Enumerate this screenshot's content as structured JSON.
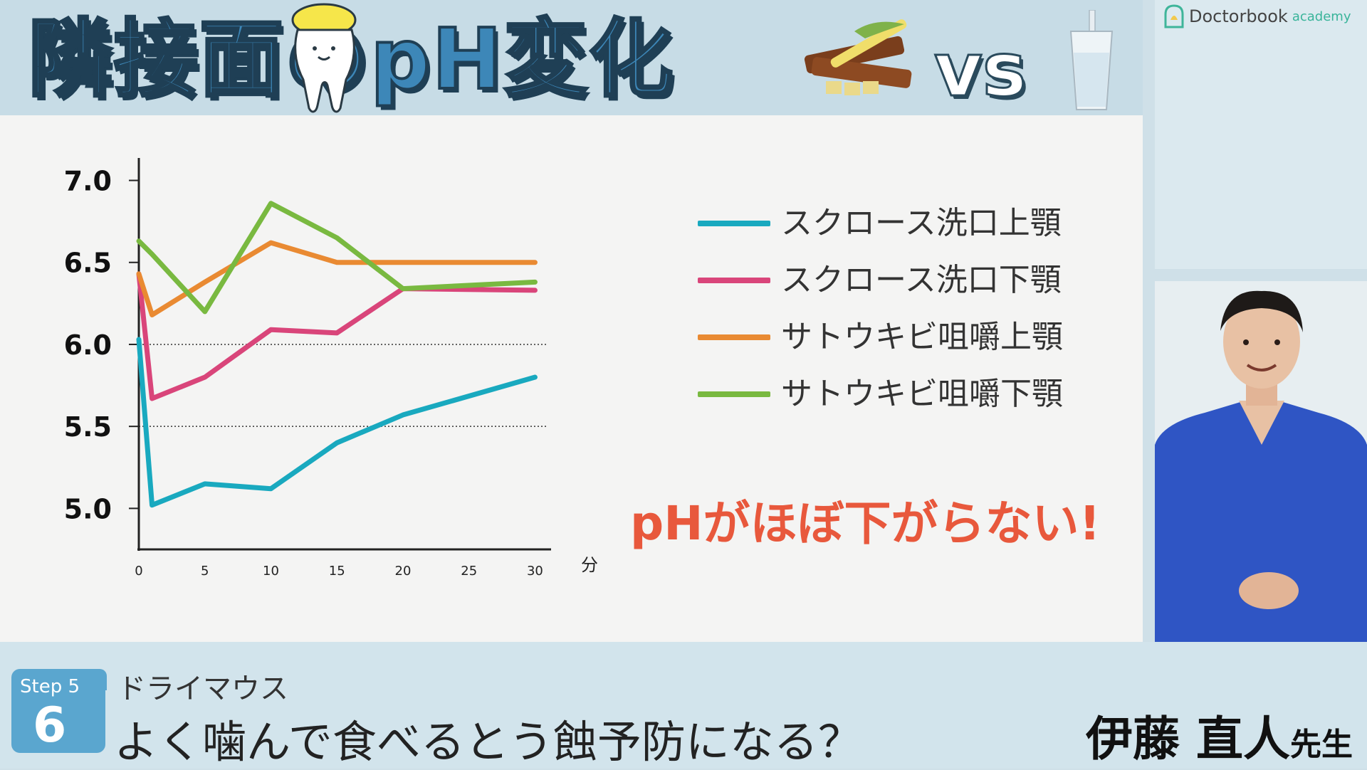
{
  "header": {
    "title": "隣接面のpH変化",
    "vs": "vs"
  },
  "chart_data": {
    "type": "line",
    "xlabel": "分",
    "ylabel": "",
    "x": [
      0,
      1,
      5,
      10,
      15,
      20,
      30
    ],
    "xticks": [
      0,
      5,
      10,
      15,
      20,
      25,
      30
    ],
    "yticks": [
      "5.0",
      "5.5",
      "6.0",
      "6.5",
      "7.0"
    ],
    "xlim": [
      0,
      31
    ],
    "ylim": [
      4.75,
      7.05
    ],
    "dotted_gridlines": [
      5.5,
      6.0
    ],
    "legend_position": "right",
    "series": [
      {
        "name": "スクロース洗口上顎",
        "color": "#19a9bf",
        "values": [
          6.03,
          5.02,
          5.15,
          5.12,
          5.4,
          5.57,
          5.8
        ]
      },
      {
        "name": "スクロース洗口下顎",
        "color": "#d9457a",
        "values": [
          6.43,
          5.67,
          5.8,
          6.09,
          6.07,
          6.34,
          6.33
        ]
      },
      {
        "name": "サトウキビ咀嚼上顎",
        "color": "#e98a32",
        "values": [
          6.43,
          6.18,
          6.38,
          6.62,
          6.5,
          6.5,
          6.5
        ]
      },
      {
        "name": "サトウキビ咀嚼下顎",
        "color": "#79b940",
        "values": [
          6.63,
          6.55,
          6.2,
          6.86,
          6.65,
          6.34,
          6.38
        ]
      }
    ],
    "annotation": "pHがほぼ下がらない!"
  },
  "brand": {
    "name": "Doctorbook",
    "sub": "academy"
  },
  "footer": {
    "step_label": "Step 5",
    "step_number": "6",
    "category": "ドライマウス",
    "episode_title": "よく噛んで食べるとう蝕予防になる？",
    "presenter_name": "伊藤 直人",
    "presenter_suffix": "先生"
  },
  "colors": {
    "title_blue": "#3d87b8",
    "annotation_red": "#e8583c",
    "step_blue": "#5aa6cf"
  }
}
